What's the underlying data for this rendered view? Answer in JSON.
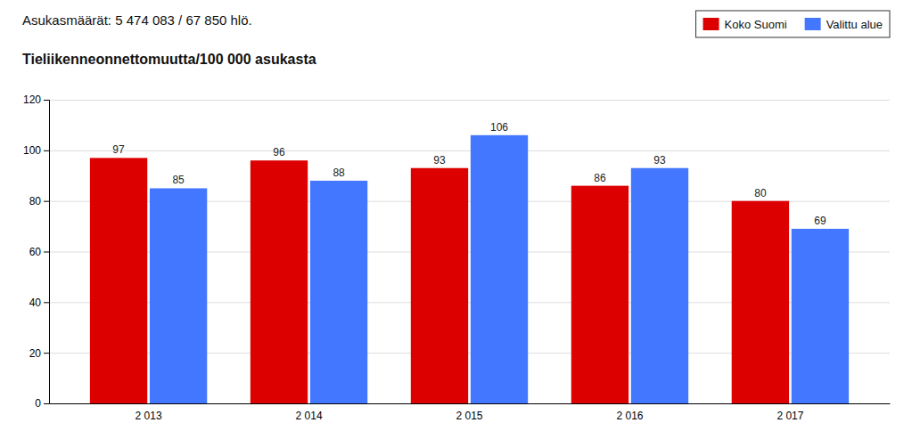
{
  "chart_data": {
    "type": "bar",
    "title": "Asukasmäärät: 5 474 083 /  67 850 hlö.",
    "subtitle": "Tieliikenneonnettomuutta/100 000 asukasta",
    "categories": [
      "2 013",
      "2 014",
      "2 015",
      "2 016",
      "2 017"
    ],
    "series": [
      {
        "name": "Koko Suomi",
        "color": "#dd0000",
        "values": [
          97,
          96,
          93,
          86,
          80
        ]
      },
      {
        "name": "Valittu alue",
        "color": "#4477ff",
        "values": [
          85,
          88,
          106,
          93,
          69
        ]
      }
    ],
    "ylim": [
      0,
      120
    ],
    "yticks": [
      0,
      20,
      40,
      60,
      80,
      100,
      120
    ],
    "grid": true,
    "legend": "upper right",
    "data_labels": true
  }
}
